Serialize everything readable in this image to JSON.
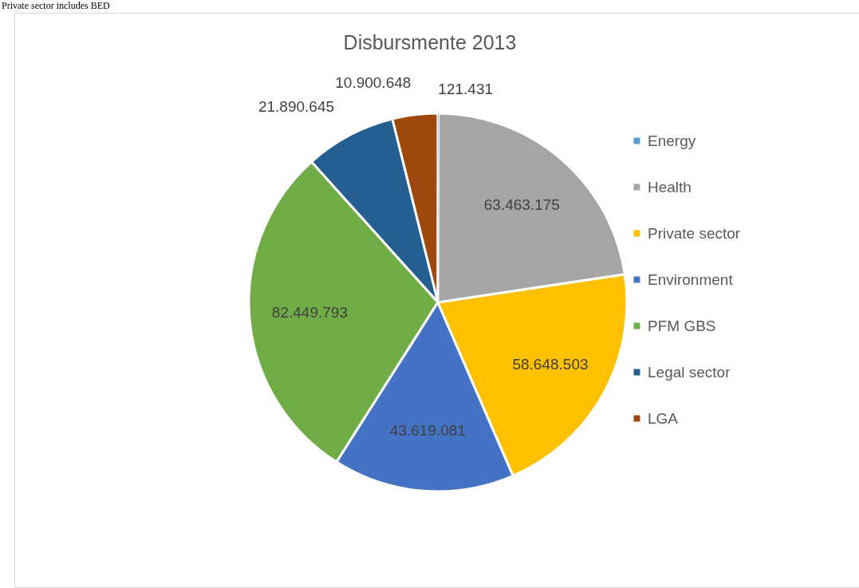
{
  "chart_data": {
    "type": "pie",
    "title": "Disbursmente 2013",
    "annotations": [
      "Private sector includes BED"
    ],
    "categories": [
      "Energy",
      "Health",
      "Private sector",
      "Environment",
      "PFM GBS",
      "Legal sector",
      "LGA"
    ],
    "values": [
      121431,
      63463175,
      58648503,
      43619081,
      82449793,
      21890645,
      10900648
    ],
    "value_labels": [
      "121.431",
      "63.463.175",
      "58.648.503",
      "43.619.081",
      "82.449.793",
      "21.890.645",
      "10.900.648"
    ],
    "colors": [
      "#5b9bd5",
      "#a5a5a5",
      "#ffc000",
      "#4472c4",
      "#70ad47",
      "#255e91",
      "#9e480e"
    ],
    "legend": "right"
  }
}
